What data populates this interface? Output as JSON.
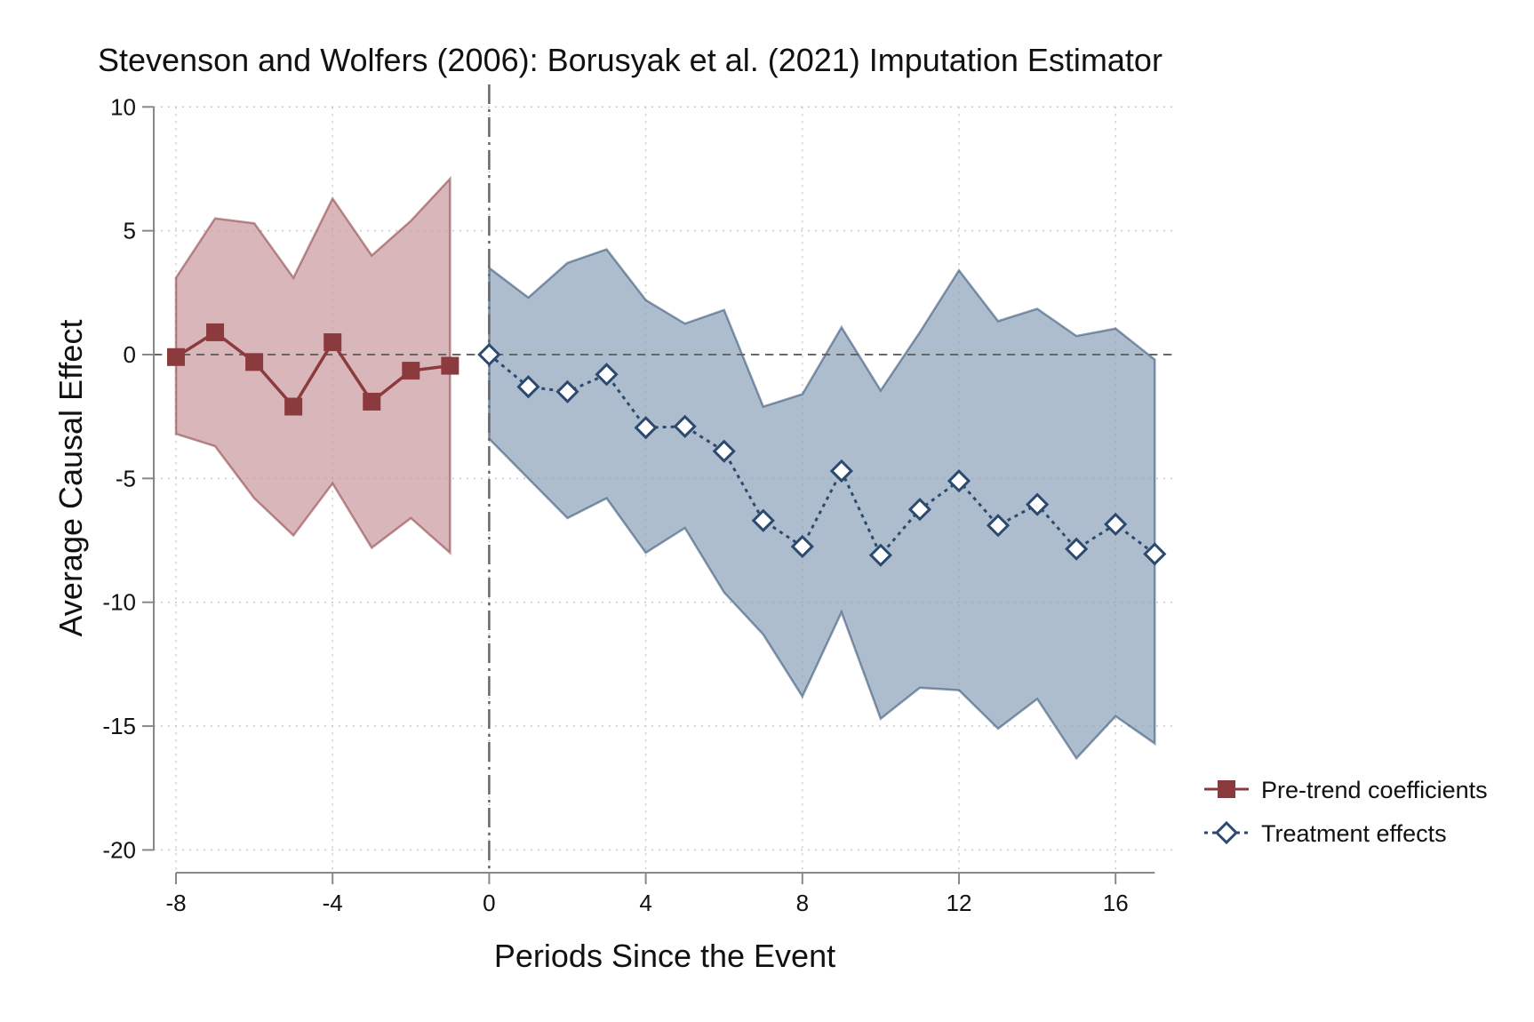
{
  "chart_data": {
    "type": "line",
    "title": "Stevenson and Wolfers (2006): Borusyak et al. (2021) Imputation Estimator",
    "xlabel": "Periods Since the Event",
    "ylabel": "Average Causal Effect",
    "xlim": [
      -8,
      17
    ],
    "ylim": [
      -20,
      10
    ],
    "x_ticks": [
      -8,
      -4,
      0,
      4,
      8,
      12,
      16
    ],
    "y_ticks": [
      10,
      5,
      0,
      -5,
      -10,
      -15,
      -20
    ],
    "x_tick_labels": [
      "-8",
      "-4",
      "0",
      "4",
      "8",
      "12",
      "16"
    ],
    "y_tick_labels": [
      "10",
      "5",
      "0",
      "-5",
      "-10",
      "-15",
      "-20"
    ],
    "grid": true,
    "reference_lines": {
      "y": 0,
      "x": 0
    },
    "legend_position": "right",
    "series": [
      {
        "name": "Pre-trend coefficients",
        "color": "#8b3a3e",
        "band_color": "#c99a9e",
        "marker": "filled-square",
        "line_style": "solid",
        "x": [
          -8,
          -7,
          -6,
          -5,
          -4,
          -3,
          -2,
          -1
        ],
        "y": [
          -0.1,
          0.9,
          -0.3,
          -2.1,
          0.5,
          -1.9,
          -0.65,
          -0.45
        ],
        "ci_upper": [
          3.1,
          5.5,
          5.3,
          3.1,
          6.3,
          4.0,
          5.4,
          7.1
        ],
        "ci_lower": [
          -3.2,
          -3.7,
          -5.8,
          -7.3,
          -5.2,
          -7.8,
          -6.6,
          -8.0
        ]
      },
      {
        "name": "Treatment effects",
        "color": "#2c4a70",
        "band_color": "#8da3ba",
        "marker": "hollow-diamond",
        "line_style": "dotted",
        "x": [
          0,
          1,
          2,
          3,
          4,
          5,
          6,
          7,
          8,
          9,
          10,
          11,
          12,
          13,
          14,
          15,
          16,
          17
        ],
        "y": [
          0.0,
          -1.3,
          -1.5,
          -0.8,
          -2.95,
          -2.9,
          -3.9,
          -6.7,
          -7.75,
          -4.7,
          -8.1,
          -6.25,
          -5.1,
          -6.9,
          -6.05,
          -7.85,
          -6.85,
          -8.05
        ],
        "ci_upper": [
          3.5,
          2.3,
          3.7,
          4.25,
          2.2,
          1.25,
          1.8,
          -2.1,
          -1.6,
          1.1,
          -1.45,
          0.9,
          3.4,
          1.35,
          1.85,
          0.75,
          1.05,
          -0.2
        ],
        "ci_lower": [
          -3.4,
          -5.0,
          -6.6,
          -5.8,
          -8.0,
          -7.0,
          -9.6,
          -11.3,
          -13.8,
          -10.4,
          -14.7,
          -13.45,
          -13.55,
          -15.1,
          -13.9,
          -16.3,
          -14.6,
          -15.7
        ]
      }
    ]
  }
}
